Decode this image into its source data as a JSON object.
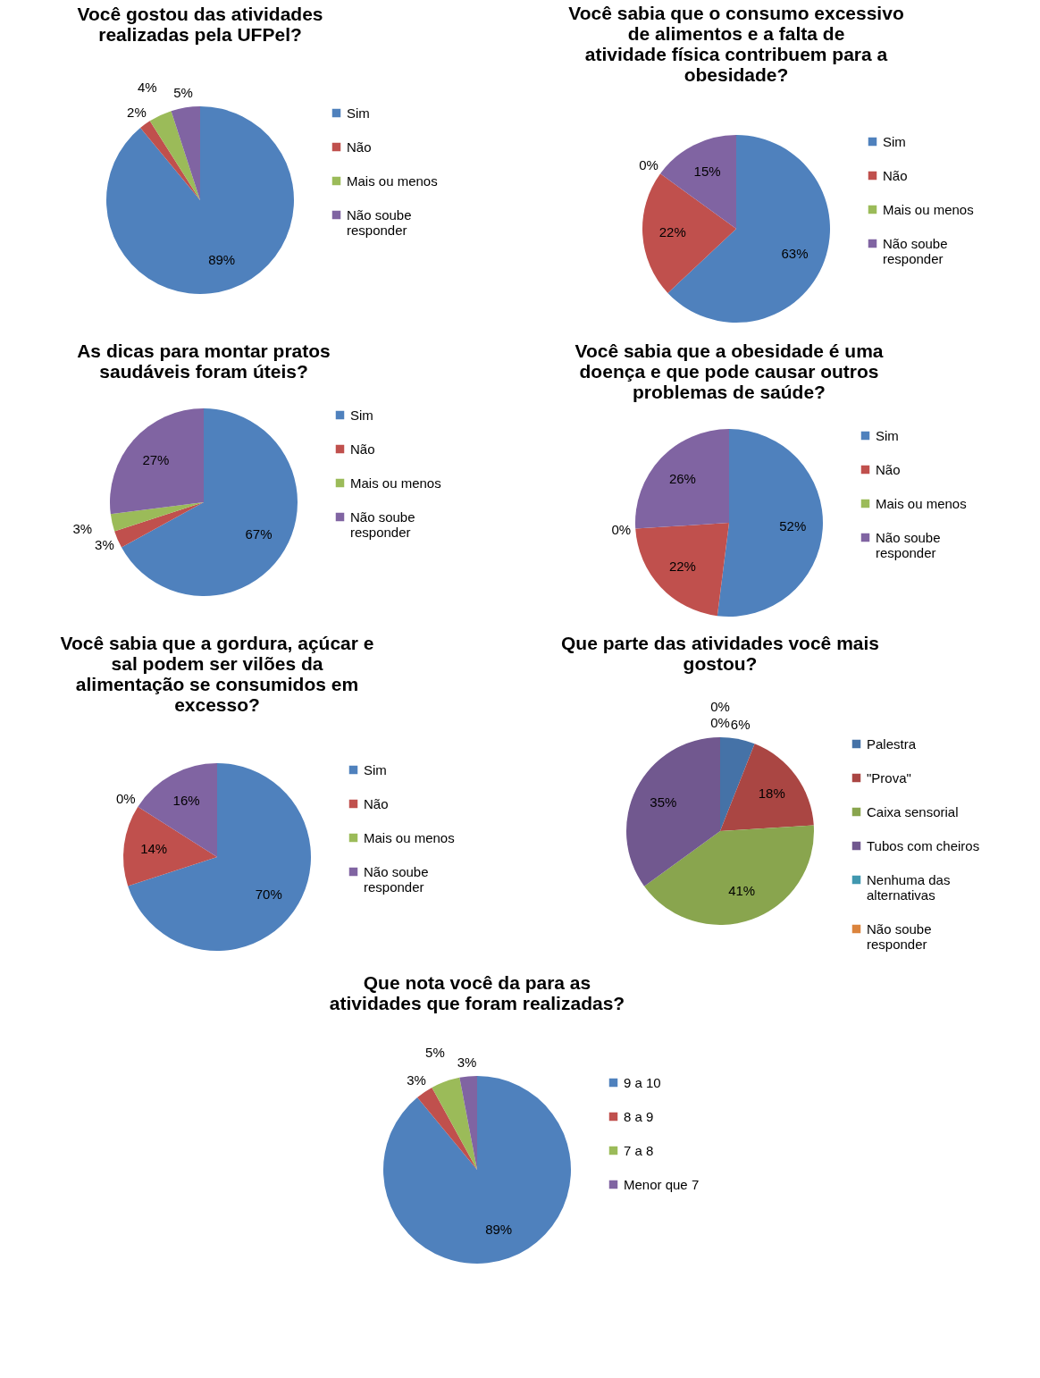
{
  "chart_data": [
    {
      "type": "pie",
      "title": "Você gostou das atividades realizadas pela UFPel?",
      "categories": [
        "Sim",
        "Não",
        "Mais ou menos",
        "Não soube responder"
      ],
      "values": [
        89,
        2,
        4,
        5
      ],
      "value_labels": [
        "89%",
        "2%",
        "4%",
        "5%"
      ],
      "colors": [
        "#4f81bd",
        "#c0504d",
        "#9bbb59",
        "#8064a2"
      ],
      "legend": "right"
    },
    {
      "type": "pie",
      "title": "Você sabia que o consumo excessivo de alimentos e a falta de atividade física contribuem para a obesidade?",
      "categories": [
        "Sim",
        "Não",
        "Mais ou menos",
        "Não soube responder"
      ],
      "values": [
        63,
        22,
        0,
        15
      ],
      "value_labels": [
        "63%",
        "22%",
        "0%",
        "15%"
      ],
      "colors": [
        "#4f81bd",
        "#c0504d",
        "#9bbb59",
        "#8064a2"
      ],
      "legend": "right"
    },
    {
      "type": "pie",
      "title": "As dicas para montar pratos saudáveis foram úteis?",
      "categories": [
        "Sim",
        "Não",
        "Mais ou menos",
        "Não soube responder"
      ],
      "values": [
        67,
        3,
        3,
        27
      ],
      "value_labels": [
        "67%",
        "3%",
        "3%",
        "27%"
      ],
      "colors": [
        "#4f81bd",
        "#c0504d",
        "#9bbb59",
        "#8064a2"
      ],
      "legend": "right"
    },
    {
      "type": "pie",
      "title": "Você sabia que a obesidade é uma doença e que pode causar outros problemas de saúde?",
      "categories": [
        "Sim",
        "Não",
        "Mais ou menos",
        "Não soube responder"
      ],
      "values": [
        52,
        22,
        0,
        26
      ],
      "value_labels": [
        "52%",
        "22%",
        "0%",
        "26%"
      ],
      "colors": [
        "#4f81bd",
        "#c0504d",
        "#9bbb59",
        "#8064a2"
      ],
      "legend": "right"
    },
    {
      "type": "pie",
      "title": "Você sabia que a gordura, açúcar e sal podem ser vilões da alimentação se consumidos em excesso?",
      "categories": [
        "Sim",
        "Não",
        "Mais ou menos",
        "Não soube responder"
      ],
      "values": [
        70,
        14,
        0,
        16
      ],
      "value_labels": [
        "70%",
        "14%",
        "0%",
        "16%"
      ],
      "colors": [
        "#4f81bd",
        "#c0504d",
        "#9bbb59",
        "#8064a2"
      ],
      "legend": "right"
    },
    {
      "type": "pie",
      "title": "Que parte das atividades você mais gostou?",
      "categories": [
        "Palestra",
        "\"Prova\"",
        "Caixa sensorial",
        "Tubos com cheiros",
        "Nenhuma das alternativas",
        "Não soube responder"
      ],
      "values": [
        6,
        18,
        41,
        35,
        0,
        0
      ],
      "value_labels": [
        "6%",
        "18%",
        "41%",
        "35%",
        "0%",
        "0%"
      ],
      "colors": [
        "#4572a7",
        "#aa4643",
        "#89a54e",
        "#71588f",
        "#4198af",
        "#db843d"
      ],
      "legend": "right"
    },
    {
      "type": "pie",
      "title": "Que nota você da para as atividades que foram realizadas?",
      "categories": [
        "9 a 10",
        "8 a 9",
        "7 a 8",
        "Menor que 7"
      ],
      "values": [
        89,
        3,
        5,
        3
      ],
      "value_labels": [
        "89%",
        "3%",
        "5%",
        "3%"
      ],
      "colors": [
        "#4f81bd",
        "#c0504d",
        "#9bbb59",
        "#8064a2"
      ],
      "legend": "right"
    }
  ]
}
